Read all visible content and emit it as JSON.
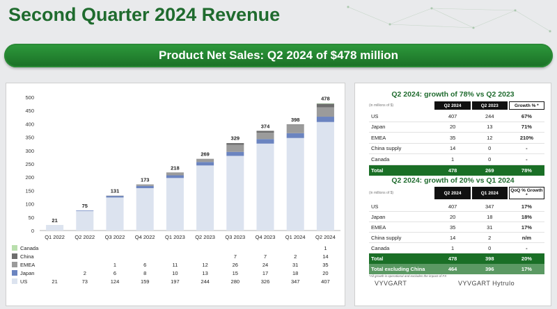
{
  "page_title": "Second Quarter 2024 Revenue",
  "banner": "Product Net Sales: Q2 2024 of $478 million",
  "chart_data": {
    "type": "bar",
    "stacked": true,
    "categories": [
      "Q1 2022",
      "Q2 2022",
      "Q3 2022",
      "Q4 2022",
      "Q1 2023",
      "Q2 2023",
      "Q3 2023",
      "Q4 2023",
      "Q1 2024",
      "Q2 2024"
    ],
    "ylim": [
      0,
      500
    ],
    "yticks": [
      0,
      50,
      100,
      150,
      200,
      250,
      300,
      350,
      400,
      450,
      500
    ],
    "totals": [
      21,
      75,
      131,
      173,
      218,
      269,
      329,
      374,
      398,
      478
    ],
    "series": [
      {
        "name": "US",
        "color": "#dce3ef",
        "values": [
          21,
          73,
          124,
          159,
          197,
          244,
          280,
          326,
          347,
          407
        ],
        "labels": [
          "21",
          "73",
          "124",
          "159",
          "197",
          "244",
          "280",
          "326",
          "347",
          "407"
        ]
      },
      {
        "name": "Japan",
        "color": "#6b84c0",
        "values": [
          0,
          2,
          6,
          8,
          10,
          13,
          15,
          17,
          18,
          20
        ],
        "labels": [
          "",
          "2",
          "6",
          "8",
          "10",
          "13",
          "15",
          "17",
          "18",
          "20"
        ]
      },
      {
        "name": "EMEA",
        "color": "#9b9b9b",
        "values": [
          0,
          0,
          1,
          6,
          11,
          12,
          26,
          24,
          31,
          35
        ],
        "labels": [
          "",
          "",
          "1",
          "6",
          "11",
          "12",
          "26",
          "24",
          "31",
          "35"
        ]
      },
      {
        "name": "China",
        "color": "#6e6e6e",
        "values": [
          0,
          0,
          0,
          0,
          0,
          0,
          7,
          7,
          2,
          14
        ],
        "labels": [
          "",
          "",
          "",
          "",
          "",
          "",
          "7",
          "7",
          "2",
          "14"
        ]
      },
      {
        "name": "Canada",
        "color": "#b9dfad",
        "values": [
          0,
          0,
          0,
          0,
          0,
          0,
          0,
          0,
          0,
          1
        ],
        "labels": [
          "",
          "",
          "",
          "",
          "",
          "",
          "",
          "",
          "",
          "1"
        ]
      }
    ],
    "legend_order": [
      "Canada",
      "China",
      "EMEA",
      "Japan",
      "US"
    ]
  },
  "table1": {
    "title": "Q2 2024: growth of 78% vs Q2 2023",
    "unit": "(in millions of $)",
    "headers": [
      "Q2 2024",
      "Q2 2023",
      "Growth % *"
    ],
    "rows": [
      {
        "label": "US",
        "a": "407",
        "b": "244",
        "g": "67%"
      },
      {
        "label": "Japan",
        "a": "20",
        "b": "13",
        "g": "71%"
      },
      {
        "label": "EMEA",
        "a": "35",
        "b": "12",
        "g": "210%"
      },
      {
        "label": "China supply",
        "a": "14",
        "b": "0",
        "g": "-"
      },
      {
        "label": "Canada",
        "a": "1",
        "b": "0",
        "g": "-"
      }
    ],
    "total": {
      "label": "Total",
      "a": "478",
      "b": "269",
      "g": "78%"
    }
  },
  "table2": {
    "title": "Q2 2024: growth of 20% vs Q1 2024",
    "unit": "(in millions of $)",
    "headers": [
      "Q2 2024",
      "Q1 2024",
      "QoQ % Growth *"
    ],
    "rows": [
      {
        "label": "US",
        "a": "407",
        "b": "347",
        "g": "17%"
      },
      {
        "label": "Japan",
        "a": "20",
        "b": "18",
        "g": "18%"
      },
      {
        "label": "EMEA",
        "a": "35",
        "b": "31",
        "g": "17%"
      },
      {
        "label": "China supply",
        "a": "14",
        "b": "2",
        "g": "n/m"
      },
      {
        "label": "Canada",
        "a": "1",
        "b": "0",
        "g": "-"
      }
    ],
    "total": {
      "label": "Total",
      "a": "478",
      "b": "398",
      "g": "20%"
    },
    "subtotal": {
      "label": "Total excluding China",
      "a": "464",
      "b": "396",
      "g": "17%"
    }
  },
  "footnote": "*All growth is operational and excludes the impact of FX",
  "logos": [
    "VYVGART",
    "VYVGART Hytrulo"
  ]
}
